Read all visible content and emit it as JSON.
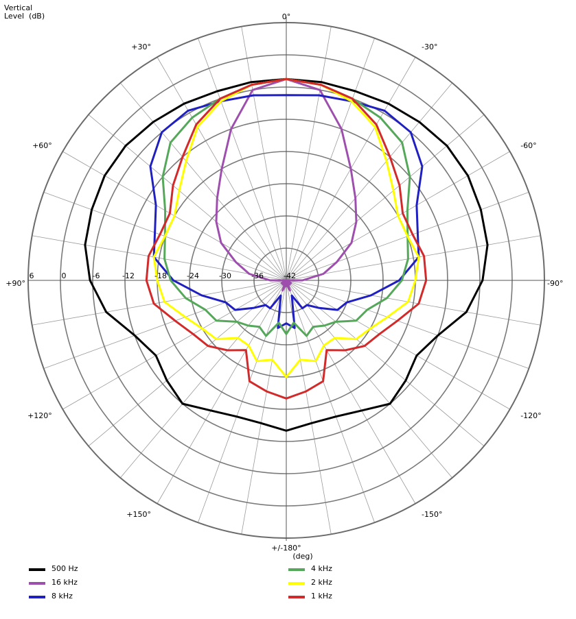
{
  "chart_data": {
    "type": "polar",
    "title_line1": "Vertical",
    "title_line2": "Level  (dB)",
    "unit_label": "(deg)",
    "r_min": -42,
    "r_max": 6,
    "r_ticks": [
      6,
      0,
      -6,
      -12,
      -18,
      -24,
      -30,
      -36,
      -42
    ],
    "r_tick_labels": [
      "6",
      "0",
      "-6",
      "-12",
      "-18",
      "-24",
      "-30",
      "-36",
      "-42"
    ],
    "angle_labels": [
      {
        "angle": 0,
        "text": "0°"
      },
      {
        "angle": 30,
        "text": "+30°"
      },
      {
        "angle": 60,
        "text": "+60°"
      },
      {
        "angle": 90,
        "text": "+90°"
      },
      {
        "angle": 120,
        "text": "+120°"
      },
      {
        "angle": 150,
        "text": "+150°"
      },
      {
        "angle": 180,
        "text": "+/-180°"
      },
      {
        "angle": -30,
        "text": "-30°"
      },
      {
        "angle": -60,
        "text": "-60°"
      },
      {
        "angle": -90,
        "text": "-90°"
      },
      {
        "angle": -120,
        "text": "-120°"
      },
      {
        "angle": -150,
        "text": "-150°"
      }
    ],
    "angles": [
      0,
      10,
      20,
      30,
      40,
      50,
      60,
      70,
      80,
      90,
      100,
      110,
      120,
      130,
      140,
      150,
      160,
      170,
      180
    ],
    "series": [
      {
        "name": "500 Hz",
        "color": "#000000",
        "values": [
          -4.5,
          -4.5,
          -4.5,
          -4.0,
          -3.5,
          -3.0,
          -3.0,
          -3.5,
          -4.0,
          -5.5,
          -8.0,
          -12.0,
          -14.0,
          -13.0,
          -12.0,
          -14.0,
          -15.0,
          -15.0,
          -14.0
        ]
      },
      {
        "name": "16 kHz",
        "color": "#9e4fae",
        "values": [
          -4.5,
          -6.0,
          -12.0,
          -18.0,
          -22.0,
          -25.0,
          -28.0,
          -32.0,
          -35.0,
          -39.0,
          -42.0,
          -42.0,
          -41.0,
          -42.0,
          -41.0,
          -42.0,
          -40.0,
          -41.0,
          -42.0
        ]
      },
      {
        "name": "8 kHz",
        "color": "#2020c0",
        "values": [
          -7.5,
          -7.0,
          -6.5,
          -5.5,
          -6.0,
          -9.0,
          -14.0,
          -16.0,
          -17.0,
          -21.0,
          -26.0,
          -30.0,
          -31.0,
          -34.0,
          -36.0,
          -36.0,
          -39.0,
          -33.0,
          -34.0
        ]
      },
      {
        "name": "4 kHz",
        "color": "#55a85a",
        "values": [
          -4.5,
          -5.0,
          -6.0,
          -7.0,
          -8.5,
          -12.0,
          -16.0,
          -18.0,
          -19.0,
          -20.5,
          -23.0,
          -26.0,
          -27.0,
          -30.0,
          -31.0,
          -32.0,
          -31.0,
          -34.0,
          -32.0
        ]
      },
      {
        "name": "2 kHz",
        "color": "#ffff00",
        "values": [
          -4.5,
          -5.0,
          -6.5,
          -9.0,
          -13.0,
          -16.0,
          -18.0,
          -18.0,
          -17.0,
          -18.0,
          -19.0,
          -22.0,
          -24.0,
          -25.0,
          -28.0,
          -28.0,
          -26.0,
          -27.0,
          -24.0
        ]
      },
      {
        "name": "1 kHz",
        "color": "#d22a2a",
        "values": [
          -4.5,
          -5.0,
          -6.0,
          -8.5,
          -12.0,
          -14.5,
          -17.0,
          -17.0,
          -16.0,
          -16.0,
          -17.0,
          -20.0,
          -22.0,
          -23.0,
          -25.0,
          -27.0,
          -22.0,
          -21.0,
          -20.0
        ]
      }
    ],
    "grid": true,
    "legend_position": "bottom"
  }
}
